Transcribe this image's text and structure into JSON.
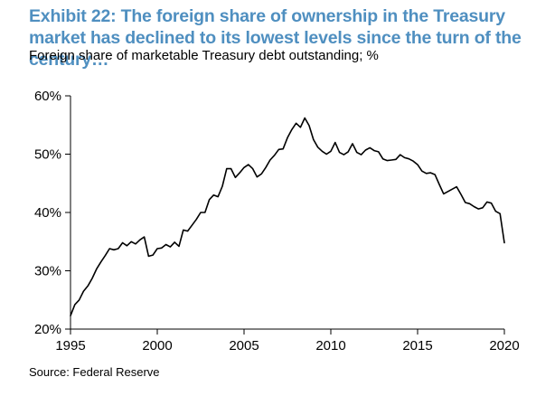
{
  "title": "Exhibit 22: The foreign share of ownership in the Treasury market has declined to its lowest levels since the turn of the century…",
  "subtitle": "Foreign share of marketable Treasury debt outstanding; %",
  "source": "Source: Federal Reserve",
  "colors": {
    "title": "#4f8fc0",
    "line": "#000000",
    "axis": "#000000",
    "text": "#000000"
  },
  "chart_data": {
    "type": "line",
    "xlabel": "",
    "ylabel": "",
    "xlim": [
      1995,
      2020
    ],
    "ylim": [
      20,
      60
    ],
    "grid": false,
    "x_ticks": [
      1995,
      2000,
      2005,
      2010,
      2015,
      2020
    ],
    "x_tick_labels": [
      "1995",
      "2000",
      "2005",
      "2010",
      "2015",
      "2020"
    ],
    "y_ticks": [
      20,
      30,
      40,
      50,
      60
    ],
    "y_tick_labels": [
      "20%",
      "30%",
      "40%",
      "50%",
      "60%"
    ],
    "series": [
      {
        "x": [
          1995.0,
          1995.25,
          1995.5,
          1995.75,
          1996.0,
          1996.25,
          1996.5,
          1996.75,
          1997.0,
          1997.25,
          1997.5,
          1997.75,
          1998.0,
          1998.25,
          1998.5,
          1998.75,
          1999.0,
          1999.25,
          1999.5,
          1999.75,
          2000.0,
          2000.25,
          2000.5,
          2000.75,
          2001.0,
          2001.25,
          2001.5,
          2001.75,
          2002.0,
          2002.25,
          2002.5,
          2002.75,
          2003.0,
          2003.25,
          2003.5,
          2003.75,
          2004.0,
          2004.25,
          2004.5,
          2004.75,
          2005.0,
          2005.25,
          2005.5,
          2005.75,
          2006.0,
          2006.25,
          2006.5,
          2006.75,
          2007.0,
          2007.25,
          2007.5,
          2007.75,
          2008.0,
          2008.25,
          2008.5,
          2008.75,
          2009.0,
          2009.25,
          2009.5,
          2009.75,
          2010.0,
          2010.25,
          2010.5,
          2010.75,
          2011.0,
          2011.25,
          2011.5,
          2011.75,
          2012.0,
          2012.25,
          2012.5,
          2012.75,
          2013.0,
          2013.25,
          2013.5,
          2013.75,
          2014.0,
          2014.25,
          2014.5,
          2014.75,
          2015.0,
          2015.25,
          2015.5,
          2015.75,
          2016.0,
          2016.25,
          2016.5,
          2016.75,
          2017.0,
          2017.25,
          2017.5,
          2017.75,
          2018.0,
          2018.25,
          2018.5,
          2018.75,
          2019.0,
          2019.25,
          2019.5,
          2019.75,
          2020.0
        ],
        "y": [
          22.3,
          24.2,
          25.0,
          26.5,
          27.4,
          28.7,
          30.3,
          31.5,
          32.6,
          33.8,
          33.6,
          33.8,
          34.8,
          34.3,
          35.0,
          34.6,
          35.3,
          35.8,
          32.5,
          32.7,
          33.8,
          33.9,
          34.5,
          34.1,
          34.9,
          34.2,
          37.0,
          36.8,
          37.8,
          38.8,
          40.0,
          40.0,
          42.2,
          43.0,
          42.7,
          44.5,
          47.5,
          47.5,
          46.0,
          46.8,
          47.7,
          48.2,
          47.5,
          46.1,
          46.6,
          47.7,
          49.0,
          49.8,
          50.8,
          50.9,
          52.8,
          54.2,
          55.3,
          54.6,
          56.2,
          54.9,
          52.5,
          51.2,
          50.5,
          50.0,
          50.5,
          52.0,
          50.3,
          49.9,
          50.4,
          51.8,
          50.3,
          49.9,
          50.7,
          51.1,
          50.6,
          50.4,
          49.2,
          48.9,
          49.0,
          49.1,
          49.9,
          49.4,
          49.2,
          48.8,
          48.2,
          47.1,
          46.7,
          46.8,
          46.5,
          44.8,
          43.2,
          43.6,
          44.0,
          44.4,
          43.1,
          41.7,
          41.5,
          41.0,
          40.6,
          40.8,
          41.8,
          41.6,
          40.2,
          39.8,
          34.8
        ]
      }
    ]
  }
}
